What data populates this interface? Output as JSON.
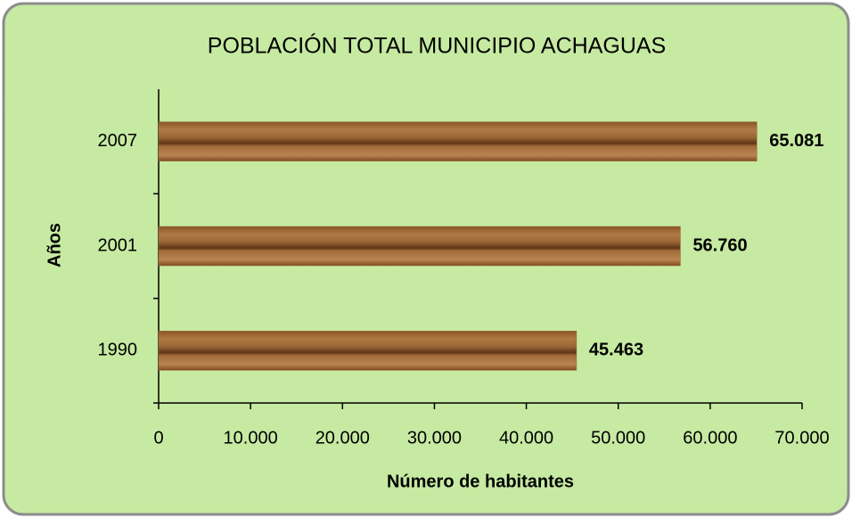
{
  "chart_data": {
    "type": "bar",
    "orientation": "horizontal",
    "title": "POBLACIÓN TOTAL MUNICIPIO ACHAGUAS",
    "xlabel": "Número de habitantes",
    "ylabel": "Años",
    "categories": [
      "1990",
      "2001",
      "2007"
    ],
    "values": [
      45463,
      56760,
      65081
    ],
    "value_labels": [
      "45.463",
      "56.760",
      "65.081"
    ],
    "color": "#9a6535",
    "xlim": [
      0,
      70000
    ],
    "xticks": [
      0,
      {
        "value": 10000,
        "label": "10.000"
      },
      {
        "value": 20000,
        "label": "20.000"
      },
      {
        "value": 30000,
        "label": "30.000"
      },
      {
        "value": 40000,
        "label": "40.000"
      },
      {
        "value": 50000,
        "label": "50.000"
      },
      {
        "value": 60000,
        "label": "60.000"
      },
      {
        "value": 70000,
        "label": "70.000"
      }
    ],
    "grid": false
  }
}
